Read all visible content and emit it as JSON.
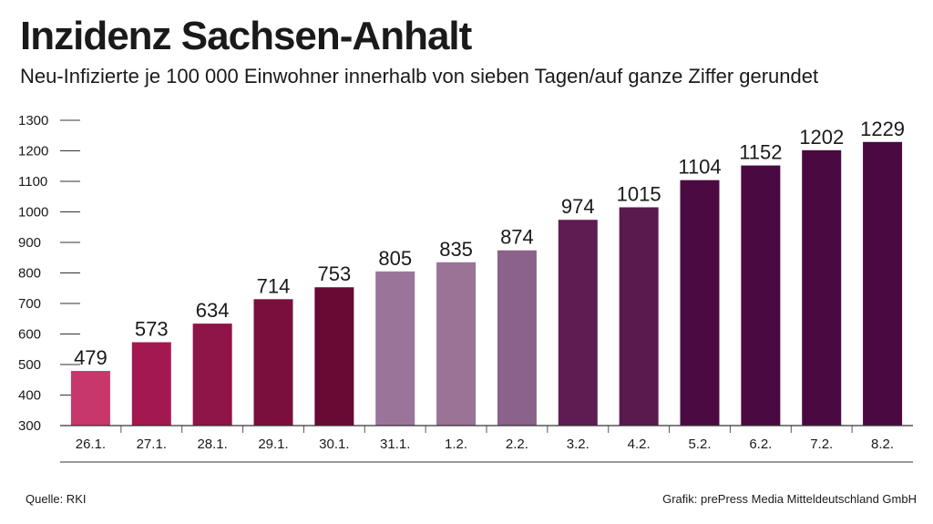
{
  "header": {
    "title": "Inzidenz Sachsen-Anhalt",
    "subtitle": "Neu-Infizierte je 100 000 Einwohner innerhalb von sieben Tagen/auf ganze Ziffer gerundet"
  },
  "footer": {
    "source": "Quelle: RKI",
    "credit": "Grafik: prePress Media Mitteldeutschland GmbH"
  },
  "chart_data": {
    "type": "bar",
    "title": "Inzidenz Sachsen-Anhalt",
    "xlabel": "",
    "ylabel": "",
    "ylim": [
      300,
      1300
    ],
    "yticks": [
      300,
      400,
      500,
      600,
      700,
      800,
      900,
      1000,
      1100,
      1200,
      1300
    ],
    "categories": [
      "26.1.",
      "27.1.",
      "28.1.",
      "29.1.",
      "30.1.",
      "31.1.",
      "1.2.",
      "2.2.",
      "3.2.",
      "4.2.",
      "5.2.",
      "6.2.",
      "7.2.",
      "8.2."
    ],
    "values": [
      479,
      573,
      634,
      714,
      753,
      805,
      835,
      874,
      974,
      1015,
      1104,
      1152,
      1202,
      1229
    ],
    "colors": [
      "#c8376b",
      "#a3184f",
      "#8f1447",
      "#7a0f3c",
      "#680a33",
      "#9b7599",
      "#9a7397",
      "#8b6289",
      "#5f1c52",
      "#5a1a4e",
      "#4c0a42",
      "#4a0940",
      "#4a0940",
      "#4a0940"
    ]
  }
}
